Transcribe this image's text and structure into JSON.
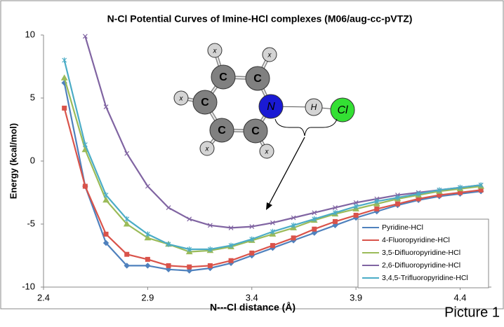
{
  "chart_data": {
    "type": "line",
    "title": "N-Cl Potential Curves of Imine-HCl complexes (M06/aug-cc-pVTZ)",
    "x_label": "N---Cl distance (Å)",
    "y_label": "Energy (kcal/mol)",
    "x": [
      2.5,
      2.6,
      2.7,
      2.8,
      2.9,
      3.0,
      3.1,
      3.2,
      3.3,
      3.4,
      3.5,
      3.6,
      3.7,
      3.8,
      3.9,
      4.0,
      4.1,
      4.2,
      4.3,
      4.4,
      4.5
    ],
    "series": [
      {
        "name": "Pyridine-HCl",
        "color": "#4f81bd",
        "marker": "diamond",
        "values": [
          6.2,
          -2.0,
          -6.5,
          -8.3,
          -8.3,
          -8.6,
          -8.7,
          -8.5,
          -8.1,
          -7.5,
          -6.9,
          -6.3,
          -5.7,
          -5.1,
          -4.5,
          -4.0,
          -3.5,
          -3.1,
          -2.8,
          -2.6,
          -2.4
        ]
      },
      {
        "name": "4-Fluoropyridine-HCl",
        "color": "#d9534a",
        "marker": "square",
        "values": [
          4.2,
          -2.0,
          -5.8,
          -7.4,
          -7.8,
          -8.3,
          -8.4,
          -8.3,
          -7.9,
          -7.3,
          -6.7,
          -6.1,
          -5.4,
          -4.8,
          -4.3,
          -3.8,
          -3.4,
          -3.0,
          -2.7,
          -2.5,
          -2.3
        ]
      },
      {
        "name": "3,5-Difluoropyridine-HCl",
        "color": "#9bbb59",
        "marker": "triangle",
        "values": [
          6.6,
          0.9,
          -3.1,
          -5.0,
          -6.1,
          -6.6,
          -7.2,
          -7.1,
          -6.8,
          -6.3,
          -5.8,
          -5.3,
          -4.7,
          -4.2,
          -3.8,
          -3.4,
          -3.0,
          -2.7,
          -2.4,
          -2.2,
          -2.0
        ]
      },
      {
        "name": "2,6-Difluoropyridine-HCl",
        "color": "#8064a2",
        "marker": "x",
        "values": [
          null,
          9.9,
          4.3,
          0.6,
          -2.0,
          -3.7,
          -4.6,
          -5.1,
          -5.3,
          -5.2,
          -4.9,
          -4.5,
          -4.1,
          -3.7,
          -3.3,
          -3.0,
          -2.7,
          -2.5,
          -2.3,
          -2.1,
          -1.9
        ]
      },
      {
        "name": "3,4,5-Trifluoropyridine-HCl",
        "color": "#4bacc6",
        "marker": "star",
        "values": [
          8.0,
          1.3,
          -2.7,
          -4.6,
          -5.8,
          -6.6,
          -7.0,
          -7.0,
          -6.7,
          -6.2,
          -5.6,
          -5.1,
          -4.6,
          -4.1,
          -3.6,
          -3.2,
          -2.9,
          -2.6,
          -2.3,
          -2.1,
          -1.9
        ]
      }
    ],
    "xlim": [
      2.4,
      4.55
    ],
    "xticks": [
      2.4,
      2.9,
      3.4,
      3.9,
      4.4
    ],
    "ylim": [
      -10,
      10
    ],
    "yticks": [
      -10,
      -5,
      0,
      5,
      10
    ],
    "legend": "lower right",
    "molecule": [
      "C",
      "C",
      "N",
      "C",
      "C",
      "C",
      "x",
      "x",
      "x",
      "x",
      "x",
      "H",
      "Cl"
    ],
    "caption": "Picture 1"
  }
}
